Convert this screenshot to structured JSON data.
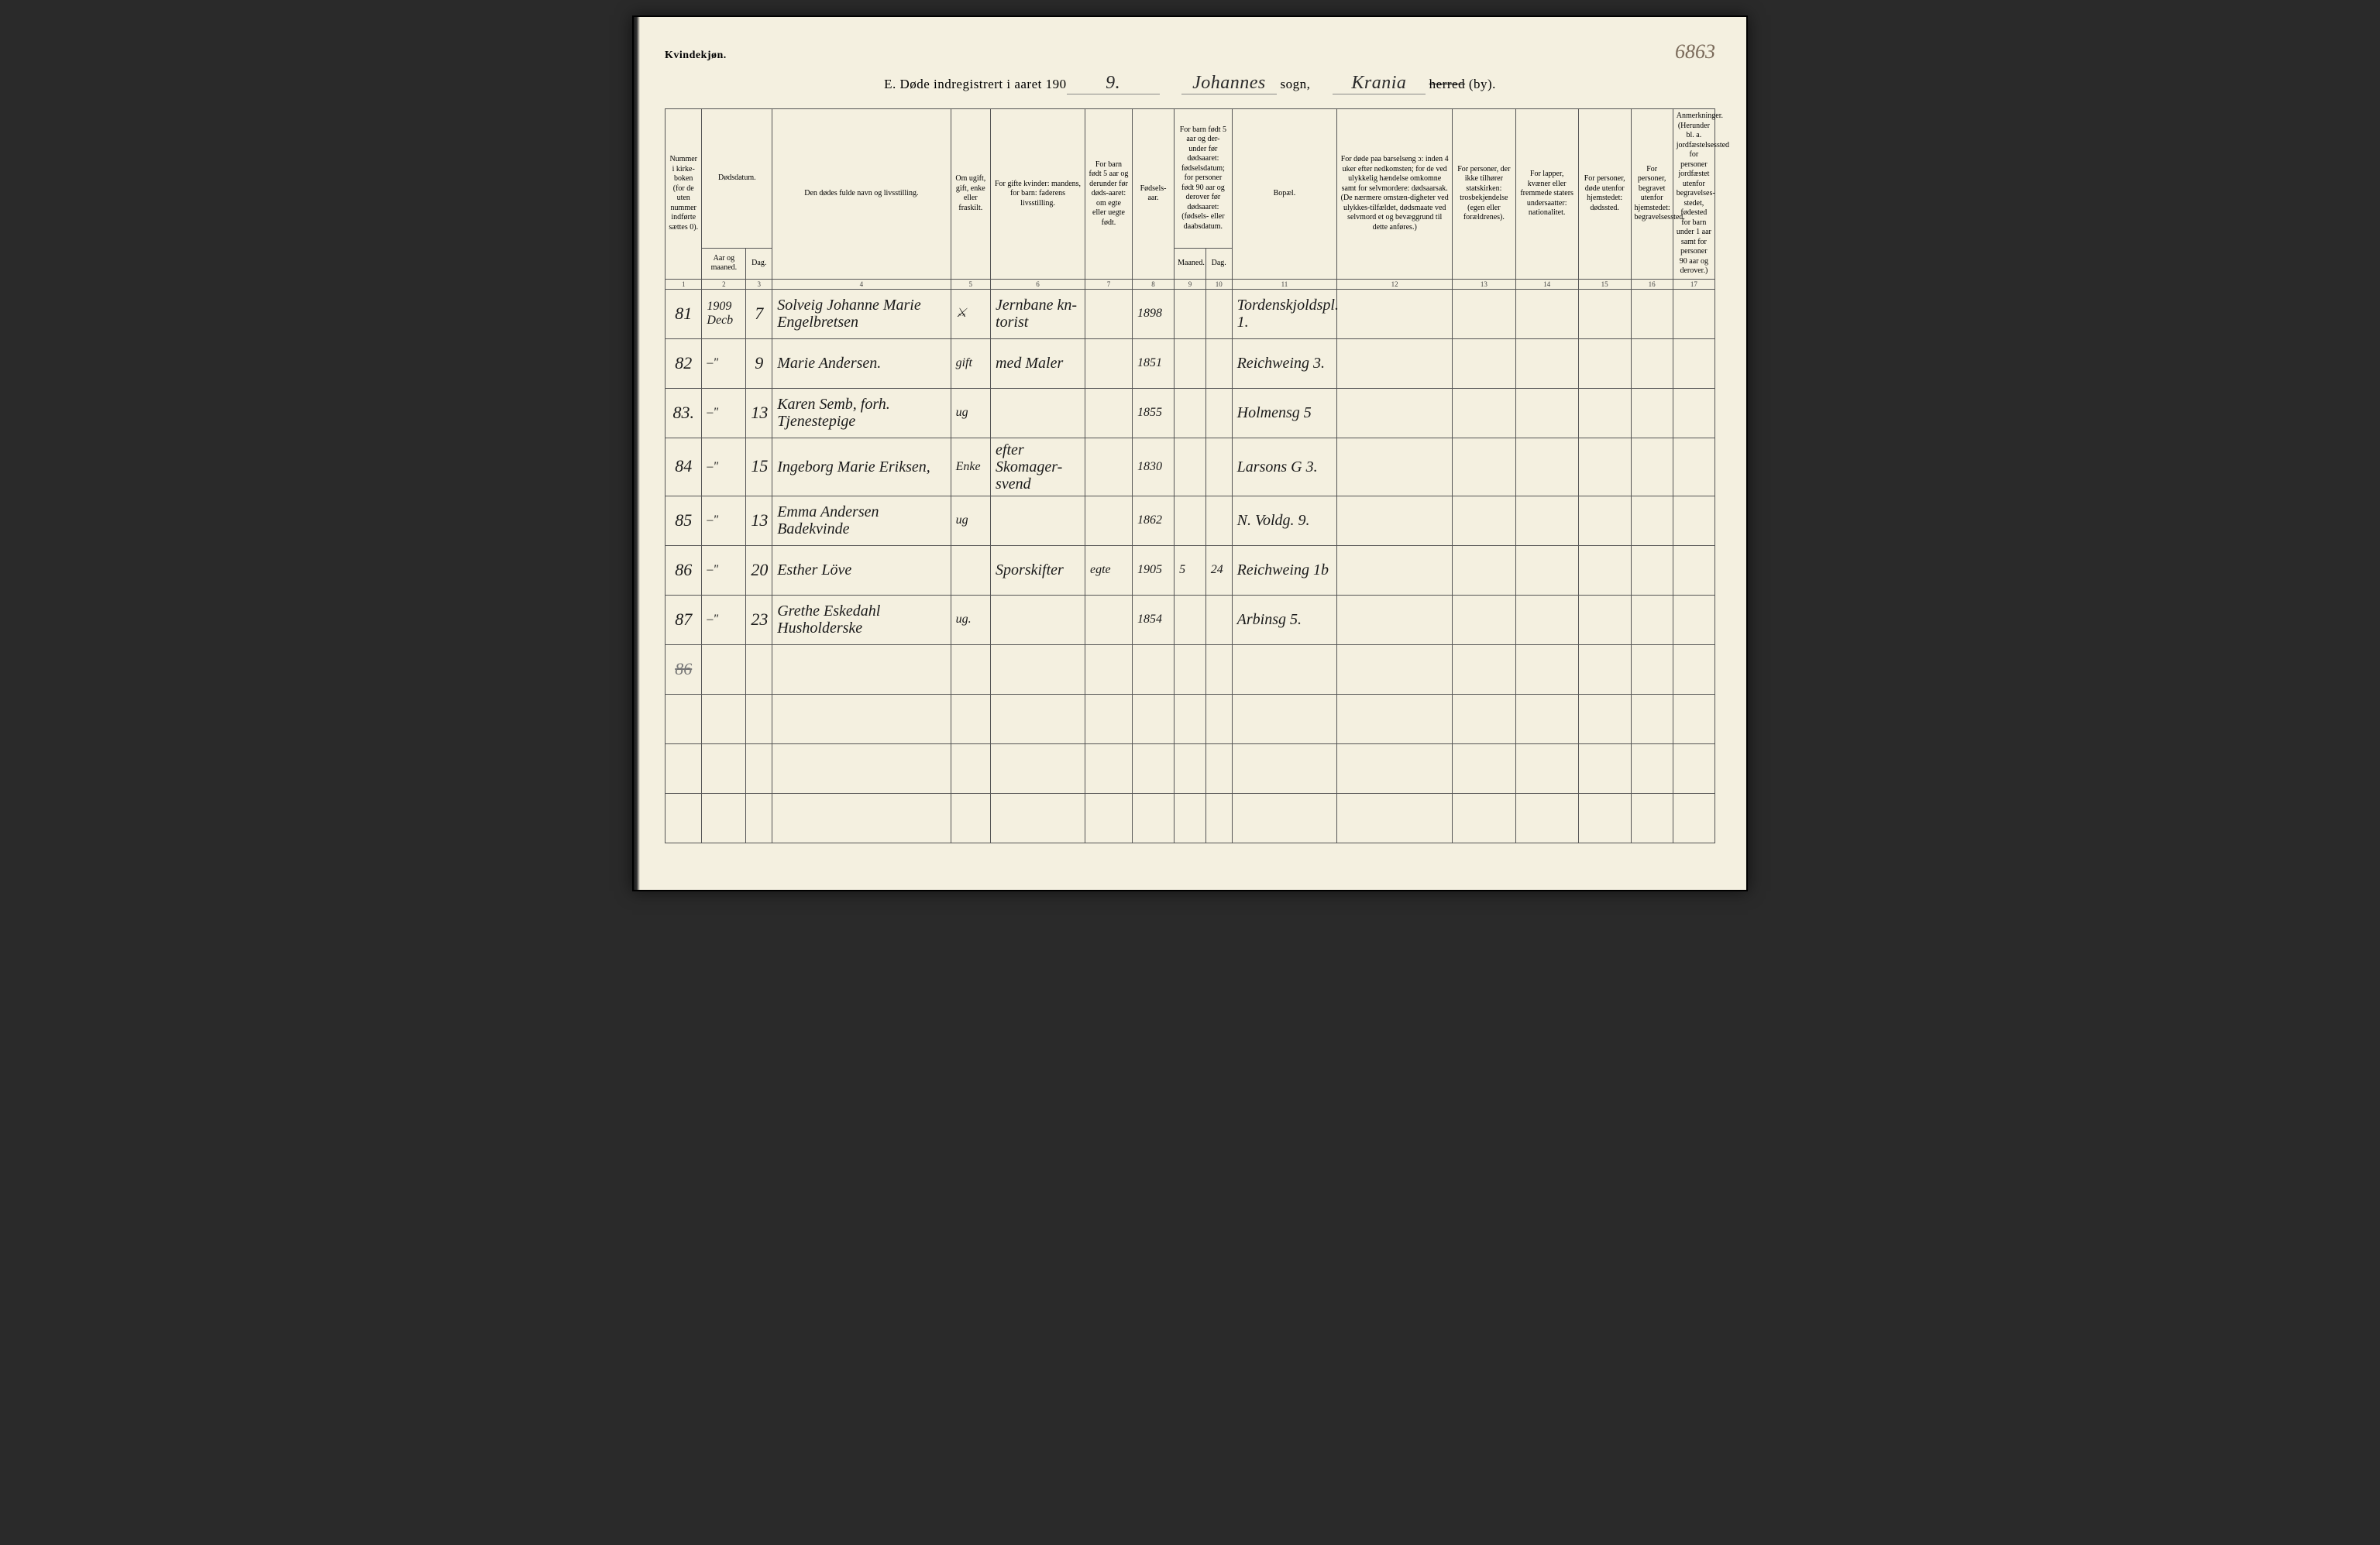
{
  "page": {
    "gender_label": "Kvindekjøn.",
    "page_number_handwritten": "6863",
    "title_prefix": "E.   Døde indregistrert i aaret 190",
    "title_year_digit": "9.",
    "sogn_value": "Johannes",
    "sogn_label": "sogn,",
    "herred_value": "Krania",
    "herred_label_struck": "herred",
    "herred_label_rest": " (by)."
  },
  "columns": {
    "c1": "Nummer i kirke-boken (for de uten nummer indførte sættes 0).",
    "c2_group": "Dødsdatum.",
    "c2a": "Aar og maaned.",
    "c2b": "Dag.",
    "c4": "Den dødes fulde navn og livsstilling.",
    "c5": "Om ugift, gift, enke eller fraskilt.",
    "c6": "For gifte kvinder: mandens, for barn: faderens livsstilling.",
    "c7": "For barn født 5 aar og derunder før døds-aaret: om egte eller uegte født.",
    "c8": "Fødsels-aar.",
    "c9_10_group": "For barn født 5 aar og der-under før dødsaaret: fødselsdatum; for personer født 90 aar og derover før dødsaaret: (fødsels- eller daabsdatum.",
    "c9": "Maaned.",
    "c10": "Dag.",
    "c11": "Bopæl.",
    "c12": "For døde paa barselseng ɔ: inden 4 uker efter nedkomsten; for de ved ulykkelig hændelse omkomne samt for selvmordere: dødsaarsak. (De nærmere omstæn-digheter ved ulykkes-tilfældet, dødsmaate ved selvmord et og bevæggrund til dette anføres.)",
    "c13": "For personer, der ikke tilhører statskirken: trosbekjendelse (egen eller forældrenes).",
    "c14": "For lapper, kvæner eller fremmede staters undersaatter: nationalitet.",
    "c15": "For personer, døde utenfor hjemstedet: dødssted.",
    "c16": "For personer, begravet utenfor hjemstedet: begravelsessted.",
    "c17": "Anmerkninger. (Herunder bl. a. jordfæstelsessted for personer jordfæstet utenfor begravelses-stedet, fødested for barn under 1 aar samt for personer 90 aar og derover.)"
  },
  "colnums": [
    "1",
    "2",
    "3",
    "4",
    "5",
    "6",
    "7",
    "8",
    "9",
    "10",
    "11",
    "12",
    "13",
    "14",
    "15",
    "16",
    "17"
  ],
  "rows": [
    {
      "n": "81",
      "ym": "1909 Decb",
      "d": "7",
      "name": "Solveig Johanne Marie Engelbretsen",
      "stat": "⚔",
      "occ": "Jernbane kn-torist",
      "leg": "",
      "by": "1898",
      "m": "",
      "dg": "",
      "addr": "Tordenskjoldspl. 1."
    },
    {
      "n": "82",
      "ym": "–\"",
      "d": "9",
      "name": "Marie Andersen.",
      "stat": "gift",
      "occ": "med Maler",
      "leg": "",
      "by": "1851",
      "m": "",
      "dg": "",
      "addr": "Reichweing 3."
    },
    {
      "n": "83.",
      "ym": "–\"",
      "d": "13",
      "name": "Karen Semb, forh. Tjenestepige",
      "stat": "ug",
      "occ": "",
      "leg": "",
      "by": "1855",
      "m": "",
      "dg": "",
      "addr": "Holmensg 5"
    },
    {
      "n": "84",
      "ym": "–\"",
      "d": "15",
      "name": "Ingeborg Marie Eriksen,",
      "stat": "Enke",
      "occ": "efter Skomager-svend",
      "leg": "",
      "by": "1830",
      "m": "",
      "dg": "",
      "addr": "Larsons G 3."
    },
    {
      "n": "85",
      "ym": "–\"",
      "d": "13",
      "name": "Emma Andersen Badekvinde",
      "stat": "ug",
      "occ": "",
      "leg": "",
      "by": "1862",
      "m": "",
      "dg": "",
      "addr": "N. Voldg. 9."
    },
    {
      "n": "86",
      "ym": "–\"",
      "d": "20",
      "name": "Esther Löve",
      "stat": "",
      "occ": "Sporskifter",
      "leg": "egte",
      "by": "1905",
      "m": "5",
      "dg": "24",
      "addr": "Reichweing 1b"
    },
    {
      "n": "87",
      "ym": "–\"",
      "d": "23",
      "name": "Grethe Eskedahl Husholderske",
      "stat": "ug.",
      "occ": "",
      "leg": "",
      "by": "1854",
      "m": "",
      "dg": "",
      "addr": "Arbinsg 5."
    }
  ],
  "struck_row": {
    "n": "86"
  },
  "colors": {
    "paper": "#f4f0e0",
    "ink": "#1a1a1a",
    "rule": "#555",
    "faded": "#7a6a5a"
  },
  "col_widths_pct": [
    3.5,
    4.2,
    2.5,
    17,
    3.8,
    9,
    4.5,
    4,
    3,
    2.5,
    10,
    11,
    6,
    6,
    5,
    4,
    4
  ]
}
